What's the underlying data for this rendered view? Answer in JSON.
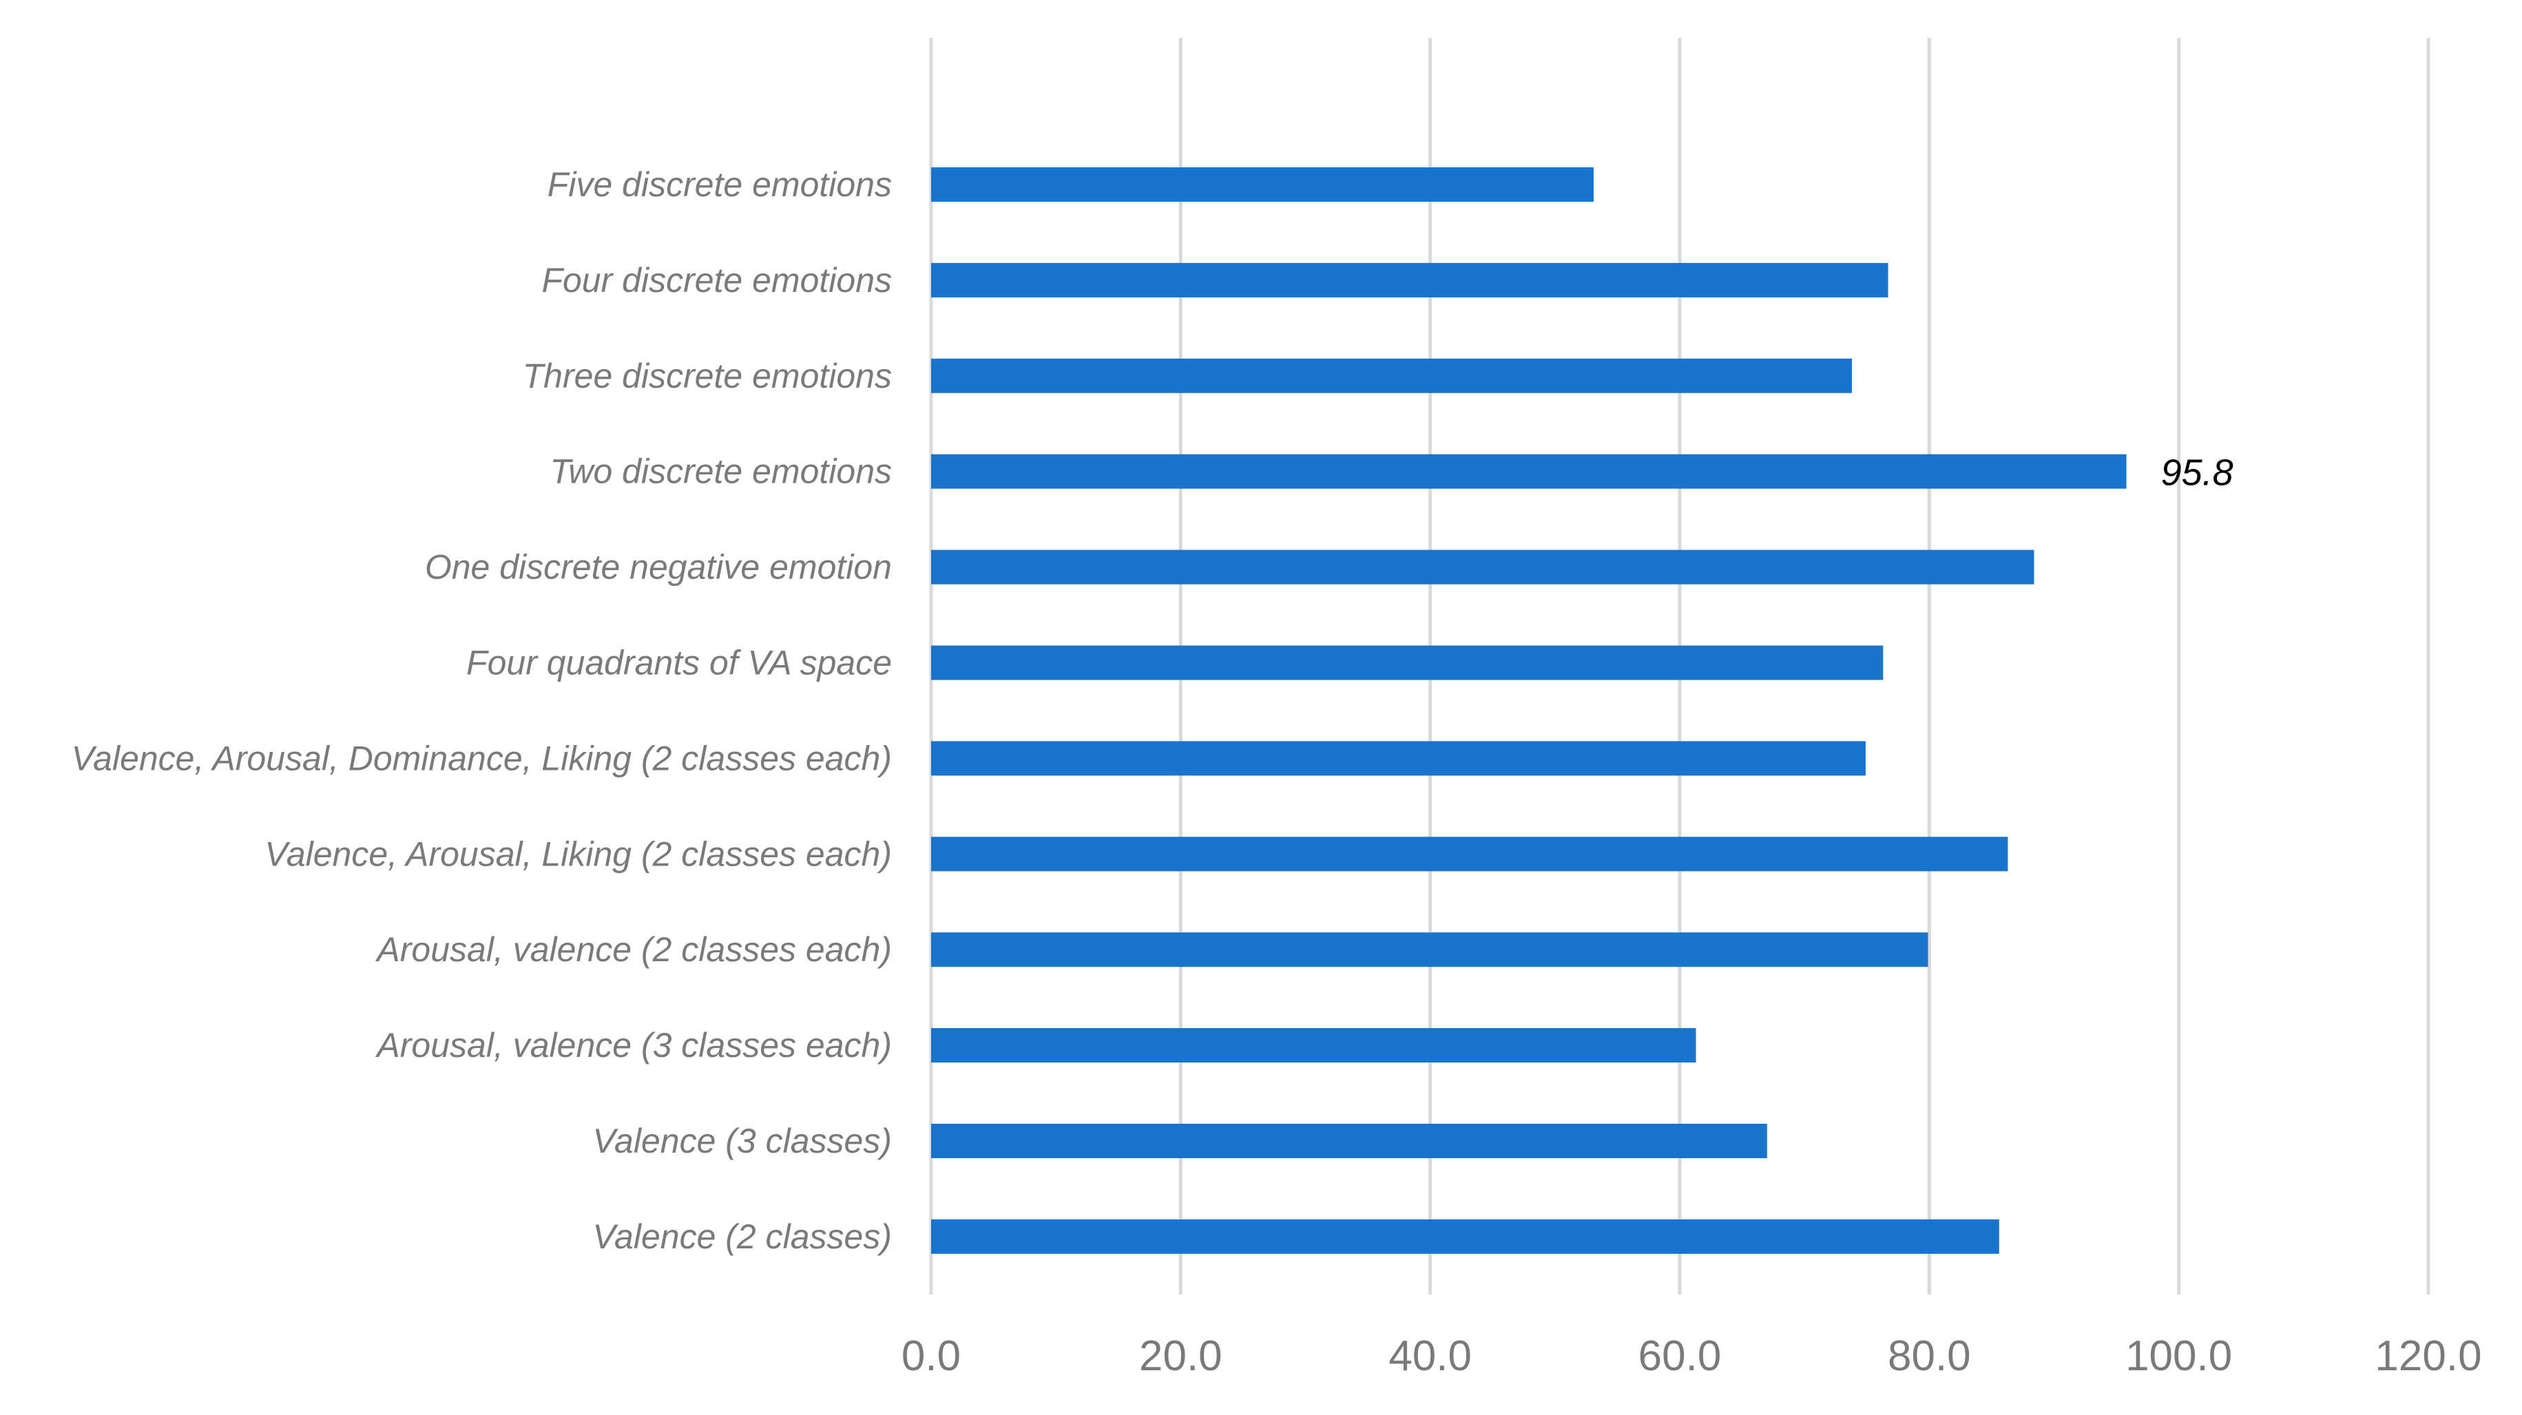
{
  "chart_data": {
    "type": "bar",
    "orientation": "horizontal",
    "title": "",
    "xlabel": "",
    "ylabel": "",
    "xlim": [
      0,
      120
    ],
    "xticks": [
      0,
      20,
      40,
      60,
      80,
      100,
      120
    ],
    "tick_labels": [
      "0.0",
      "20.0",
      "40.0",
      "60.0",
      "80.0",
      "100.0",
      "120.0"
    ],
    "grid": "vertical",
    "categories": [
      "Five discrete emotions",
      "Four discrete emotions",
      "Three discrete emotions",
      "Two discrete emotions",
      "One discrete negative emotion",
      "Four quadrants of VA space",
      "Valence, Arousal, Dominance, Liking (2 classes each)",
      "Valence, Arousal, Liking (2 classes each)",
      "Arousal, valence (2 classes each)",
      "Arousal, valence (3 classes each)",
      "Valence (3 classes)",
      "Valence (2 classes)"
    ],
    "values": [
      53.1,
      76.7,
      73.8,
      95.8,
      88.4,
      76.3,
      74.9,
      86.3,
      79.9,
      61.3,
      67.0,
      85.6
    ],
    "data_labels": [
      {
        "category_index": 3,
        "text": "95.8"
      }
    ],
    "colors": {
      "bar": "#1874CD",
      "grid": "#D9D9D9",
      "axis_text": "#7A7A7A",
      "data_label": "#000000"
    }
  }
}
